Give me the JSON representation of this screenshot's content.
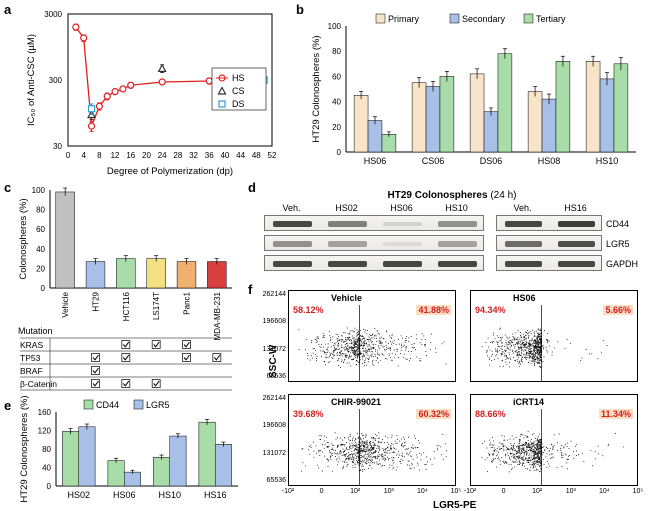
{
  "panel_a": {
    "type": "line+scatter",
    "x_label": "Degree of Polymerization    (dp)",
    "y_label": "IC₅₀ of Anti-CSC   (µM)",
    "y_scale": "log",
    "xlim": [
      0,
      52
    ],
    "ylim": [
      30,
      3000
    ],
    "yticks": [
      30,
      300,
      3000
    ],
    "xticks": [
      0,
      4,
      8,
      12,
      16,
      20,
      24,
      28,
      32,
      36,
      40,
      44,
      48,
      52
    ],
    "legend": [
      "HS",
      "CS",
      "DS"
    ],
    "legend_colors": [
      "#e02020",
      "#333333",
      "#2aa0d8"
    ],
    "legend_markers": [
      "circle",
      "triangle",
      "square"
    ],
    "hs_points": [
      {
        "x": 2,
        "y": 1900,
        "err": 200
      },
      {
        "x": 4,
        "y": 1300,
        "err": 150
      },
      {
        "x": 6,
        "y": 60,
        "err": 10
      },
      {
        "x": 8,
        "y": 120,
        "err": 15
      },
      {
        "x": 10,
        "y": 170,
        "err": 20
      },
      {
        "x": 12,
        "y": 200,
        "err": 20
      },
      {
        "x": 14,
        "y": 220,
        "err": 20
      },
      {
        "x": 16,
        "y": 250,
        "err": 25
      },
      {
        "x": 24,
        "y": 280,
        "err": 25
      },
      {
        "x": 36,
        "y": 290,
        "err": 30
      },
      {
        "x": 44,
        "y": 300,
        "err": 30
      }
    ],
    "cs_points": [
      {
        "x": 6,
        "y": 90,
        "err": 15
      },
      {
        "x": 24,
        "y": 450,
        "err": 60
      }
    ],
    "ds_points": [
      {
        "x": 6,
        "y": 110,
        "err": 20
      },
      {
        "x": 50,
        "y": 300,
        "err": 60
      }
    ]
  },
  "panel_b": {
    "type": "grouped-bar",
    "y_label": "HT29 Colonospheres (%)",
    "categories": [
      "HS06",
      "CS06",
      "DS06",
      "HS08",
      "HS10"
    ],
    "series": [
      "Primary",
      "Secondary",
      "Tertiary"
    ],
    "colors": [
      "#f8e4c8",
      "#a8c0e8",
      "#a8dca8"
    ],
    "ylim": [
      0,
      100
    ],
    "ytick_step": 20,
    "data": [
      [
        45,
        25,
        14
      ],
      [
        55,
        52,
        60
      ],
      [
        62,
        32,
        78
      ],
      [
        48,
        42,
        72
      ],
      [
        72,
        58,
        70
      ]
    ],
    "errors": [
      [
        3,
        3,
        2
      ],
      [
        4,
        4,
        4
      ],
      [
        4,
        3,
        4
      ],
      [
        4,
        4,
        4
      ],
      [
        4,
        5,
        5
      ]
    ]
  },
  "panel_c": {
    "type": "bar+table",
    "y_label": "Colonospheres (%)",
    "categories": [
      "Vehicle",
      "HT29",
      "HCT116",
      "LS174T",
      "Panc1",
      "MDA-MB-231"
    ],
    "colors": [
      "#c0c0c0",
      "#a8c0e8",
      "#a8dca8",
      "#f4e080",
      "#f0b070",
      "#d84040"
    ],
    "values": [
      98,
      27,
      30,
      30,
      27,
      27
    ],
    "errors": [
      4,
      3,
      3,
      3,
      3,
      3
    ],
    "mutations": {
      "rows": [
        "KRAS",
        "TP53",
        "BRAF",
        "β-Catenin"
      ],
      "checks": [
        [
          false,
          false,
          true,
          true,
          true,
          false
        ],
        [
          false,
          true,
          true,
          false,
          true,
          true
        ],
        [
          false,
          true,
          false,
          false,
          false,
          false
        ],
        [
          false,
          true,
          true,
          true,
          false,
          false
        ]
      ]
    },
    "mutation_label": "Mutation"
  },
  "panel_d": {
    "title": "HT29 Colonospheres (24 h)",
    "left_lanes": [
      "Veh.",
      "HS02",
      "HS06",
      "HS10"
    ],
    "right_lanes": [
      "Veh.",
      "HS16"
    ],
    "proteins": [
      "CD44",
      "LGR5",
      "GAPDH"
    ]
  },
  "panel_e": {
    "type": "grouped-bar",
    "y_label": "HT29 Colonospheres (%)",
    "categories": [
      "HS02",
      "HS06",
      "HS10",
      "HS16"
    ],
    "series": [
      "CD44",
      "LGR5"
    ],
    "colors": [
      "#a8dca8",
      "#a8c0e8"
    ],
    "ylim": [
      0,
      160
    ],
    "ytick_step": 40,
    "data": [
      [
        118,
        128
      ],
      [
        55,
        30
      ],
      [
        62,
        108
      ],
      [
        138,
        90
      ]
    ],
    "errors": [
      [
        6,
        6
      ],
      [
        5,
        4
      ],
      [
        5,
        5
      ],
      [
        6,
        5
      ]
    ]
  },
  "panel_f": {
    "type": "flow-scatter",
    "panels": [
      "Vehicle",
      "HS06",
      "CHIR-99021",
      "iCRT14"
    ],
    "left_pct": [
      "58.12%",
      "94.34%",
      "39.68%",
      "88.66%"
    ],
    "right_pct": [
      "41.88%",
      "5.66%",
      "60.32%",
      "11.34%"
    ],
    "right_pct_bg": "#fcdcc0",
    "left_color": "#d02020",
    "right_color": "#d02020",
    "x_label": "LGR5-PE",
    "y_label": "SSC-W",
    "yticks": [
      "262144",
      "196608",
      "131072",
      "65536"
    ],
    "xticks": [
      "-10²",
      "0",
      "10²",
      "10³",
      "10⁴",
      "10⁵"
    ]
  }
}
